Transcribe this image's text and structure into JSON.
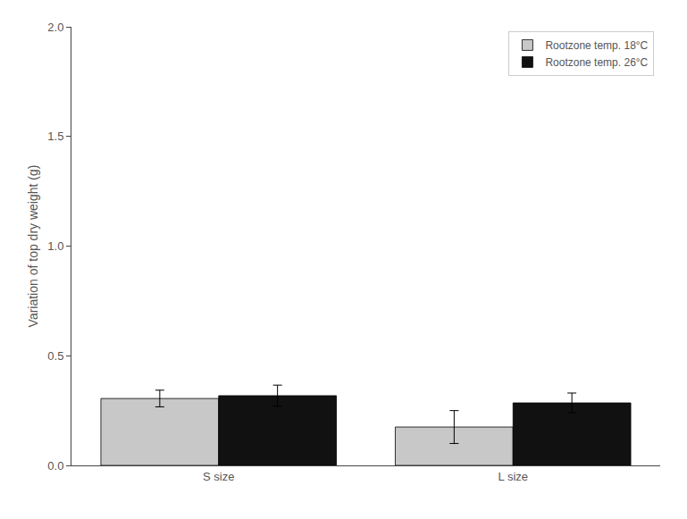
{
  "chart_data": {
    "type": "bar",
    "categories": [
      "S size",
      "L size"
    ],
    "series": [
      {
        "name": "Rootzone temp. 18°C",
        "color": "#c8c8c8",
        "values": [
          0.305,
          0.175
        ],
        "errors": [
          0.038,
          0.075
        ]
      },
      {
        "name": "Rootzone temp. 26°C",
        "color": "#111111",
        "values": [
          0.318,
          0.285
        ],
        "errors": [
          0.048,
          0.045
        ]
      }
    ],
    "ylabel": "Variation of top dry weight (g)",
    "ylim": [
      0.0,
      2.0
    ],
    "yticks": [
      {
        "value": 0.0,
        "label": "0.0"
      },
      {
        "value": 0.5,
        "label": "0.5"
      },
      {
        "value": 1.0,
        "label": "1.0"
      },
      {
        "value": 1.5,
        "label": "1.5"
      },
      {
        "value": 2.0,
        "label": "2.0"
      }
    ],
    "grid": false,
    "legend": "upper right"
  }
}
